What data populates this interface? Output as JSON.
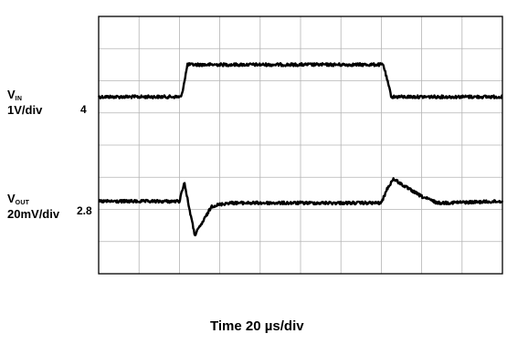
{
  "chart_data": {
    "type": "line",
    "title": "",
    "xlabel": "Time 20 µs/div",
    "ylabel": "",
    "grid": true,
    "divisions": {
      "x": 10,
      "y": 8
    },
    "series": [
      {
        "name": "VIN",
        "label_main": "V",
        "label_sub": "IN",
        "scale": "1V/div",
        "level_label": "4",
        "x_div": [
          0,
          2.05,
          2.2,
          7.05,
          7.25,
          10
        ],
        "y_div": [
          5.5,
          5.5,
          6.5,
          6.5,
          5.5,
          5.5
        ]
      },
      {
        "name": "VOUT",
        "label_main": "V",
        "label_sub": "OUT",
        "scale": "20mV/div",
        "level_label": "2.8",
        "x_div": [
          0,
          2.0,
          2.12,
          2.25,
          2.38,
          2.55,
          2.8,
          3.2,
          7.0,
          7.15,
          7.3,
          7.6,
          8.0,
          8.4,
          10
        ],
        "y_div": [
          2.25,
          2.25,
          2.85,
          2.0,
          1.2,
          1.55,
          2.1,
          2.2,
          2.2,
          2.65,
          2.95,
          2.7,
          2.4,
          2.2,
          2.25
        ]
      }
    ],
    "trace_color": "#000000",
    "grid_color": "#b4b4b4"
  }
}
